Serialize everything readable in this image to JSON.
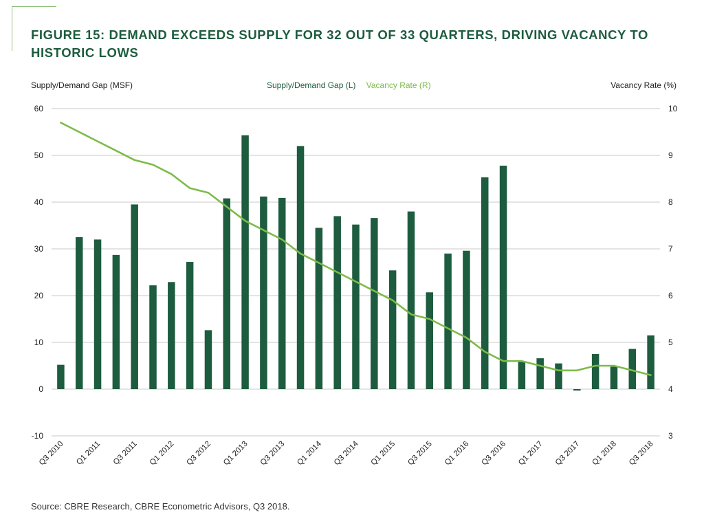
{
  "title": "FIGURE 15: DEMAND EXCEEDS SUPPLY FOR 32 OUT OF 33 QUARTERS, DRIVING VACANCY TO HISTORIC LOWS",
  "source": "Source: CBRE Research, CBRE Econometric Advisors, Q3 2018.",
  "colors": {
    "bar": "#1d5c3e",
    "line": "#7dbb4a",
    "title": "#1d5c3e",
    "grid": "#c8c8c8"
  },
  "chart_data": {
    "type": "bar",
    "title": "",
    "xlabel": "",
    "ylabel_left": "Supply/Demand Gap (MSF)",
    "ylabel_right": "Vacancy Rate (%)",
    "ylim_left": [
      -10,
      60
    ],
    "ylim_right": [
      3,
      10
    ],
    "yticks_left": [
      -10,
      0,
      10,
      20,
      30,
      40,
      50,
      60
    ],
    "yticks_right": [
      3,
      4,
      5,
      6,
      7,
      8,
      9,
      10
    ],
    "grid": true,
    "legend_position": "top-center",
    "categories": [
      "Q3 2010",
      "Q4 2010",
      "Q1 2011",
      "Q2 2011",
      "Q3 2011",
      "Q4 2011",
      "Q1 2012",
      "Q2 2012",
      "Q3 2012",
      "Q4 2012",
      "Q1 2013",
      "Q2 2013",
      "Q3 2013",
      "Q4 2013",
      "Q1 2014",
      "Q2 2014",
      "Q3 2014",
      "Q4 2014",
      "Q1 2015",
      "Q2 2015",
      "Q3 2015",
      "Q4 2015",
      "Q1 2016",
      "Q2 2016",
      "Q3 2016",
      "Q4 2016",
      "Q1 2017",
      "Q2 2017",
      "Q3 2017",
      "Q4 2017",
      "Q1 2018",
      "Q2 2018",
      "Q3 2018"
    ],
    "tick_labels": [
      "Q3 2010",
      "Q1 2011",
      "Q3 2011",
      "Q1 2012",
      "Q3 2012",
      "Q1 2013",
      "Q3 2013",
      "Q1 2014",
      "Q3 2014",
      "Q1 2015",
      "Q3 2015",
      "Q1 2016",
      "Q3 2016",
      "Q1 2017",
      "Q3 2017",
      "Q1 2018",
      "Q3 2018"
    ],
    "series": [
      {
        "name": "Supply/Demand Gap (L)",
        "type": "bar",
        "axis": "left",
        "values": [
          5.2,
          32.5,
          32.0,
          28.7,
          39.5,
          22.2,
          22.9,
          27.2,
          12.6,
          40.8,
          54.3,
          41.2,
          40.9,
          52.0,
          34.5,
          37.0,
          35.2,
          36.6,
          25.4,
          38.0,
          20.7,
          29.0,
          29.6,
          45.3,
          47.8,
          5.8,
          6.6,
          5.5,
          -0.3,
          7.5,
          4.8,
          8.6,
          11.5
        ]
      },
      {
        "name": "Vacancy Rate (R)",
        "type": "line",
        "axis": "right",
        "values": [
          9.7,
          9.5,
          9.3,
          9.1,
          8.9,
          8.8,
          8.6,
          8.3,
          8.2,
          7.9,
          7.6,
          7.4,
          7.2,
          6.9,
          6.7,
          6.5,
          6.3,
          6.1,
          5.9,
          5.6,
          5.5,
          5.3,
          5.1,
          4.8,
          4.6,
          4.6,
          4.5,
          4.4,
          4.4,
          4.5,
          4.5,
          4.4,
          4.3
        ]
      }
    ]
  }
}
